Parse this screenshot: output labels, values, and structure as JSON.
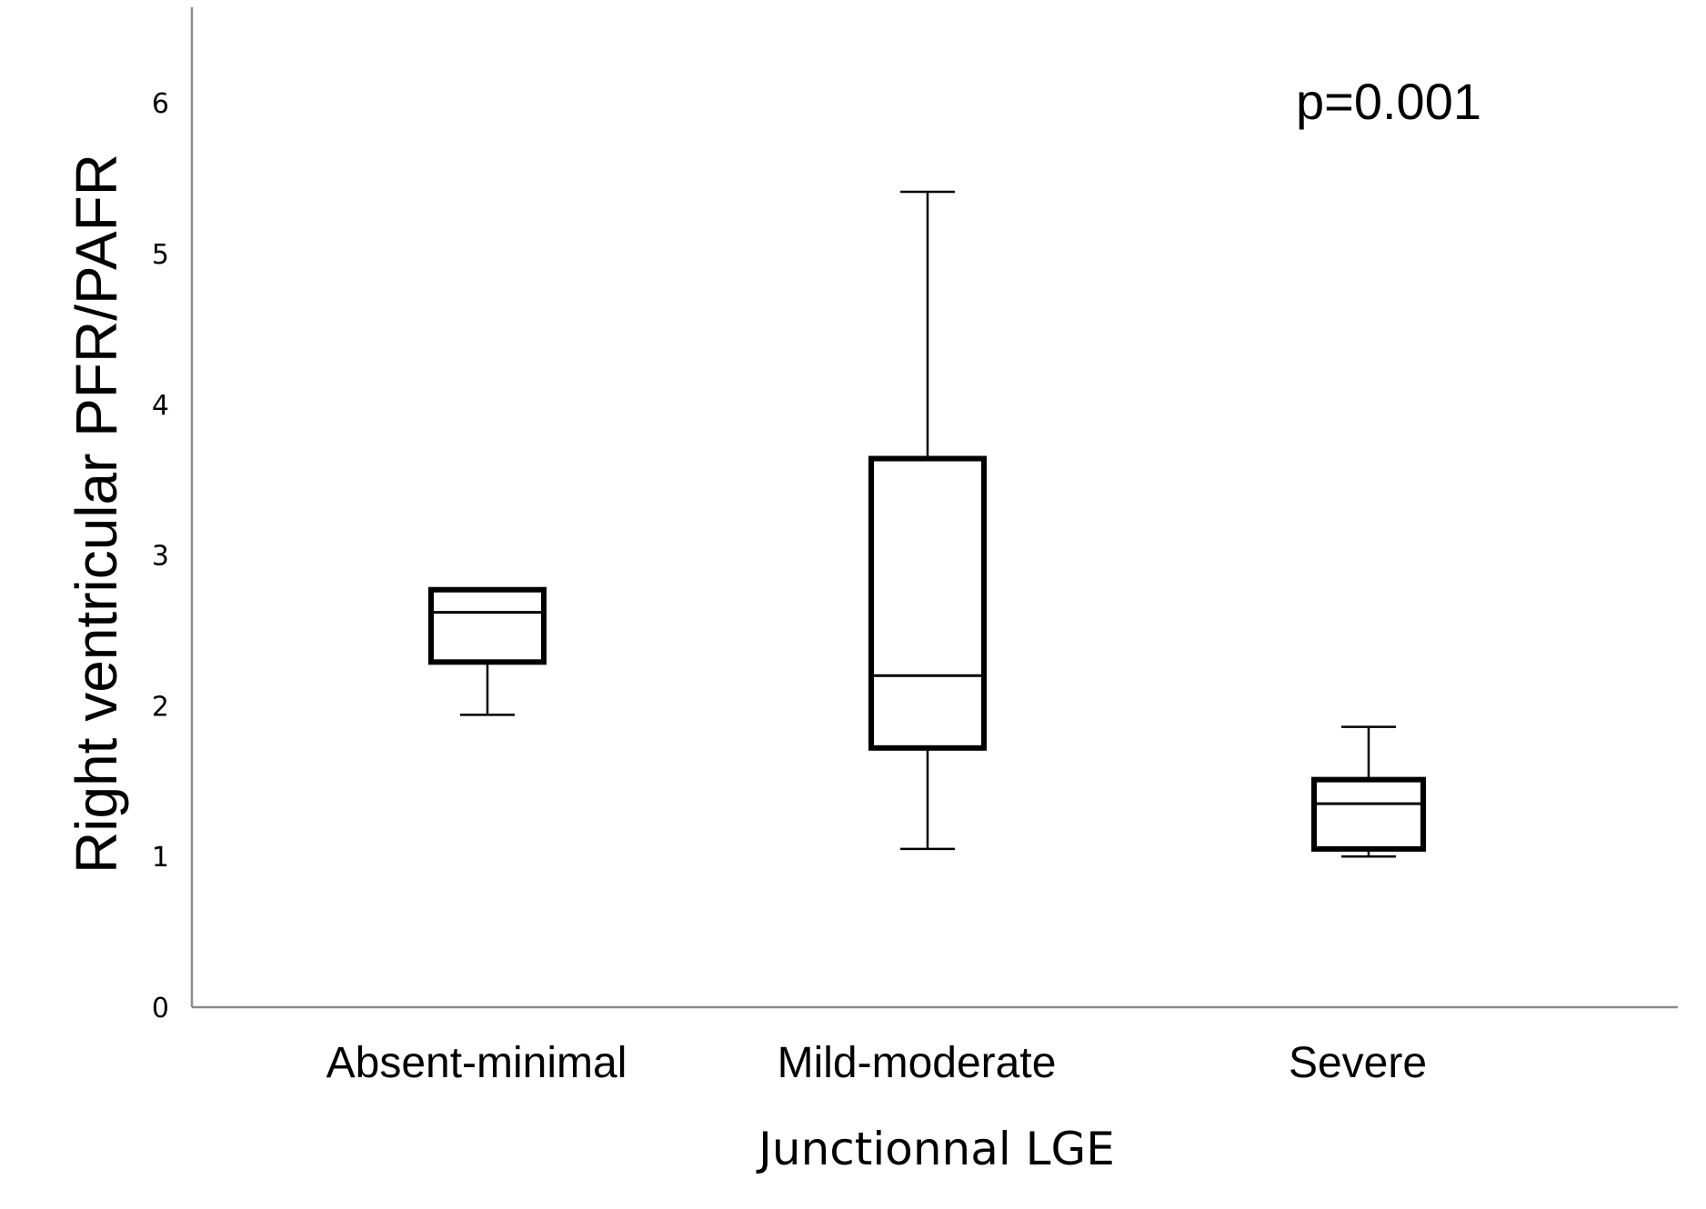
{
  "chart_data": {
    "type": "box",
    "title": "",
    "xlabel": "Junctionnal LGE",
    "ylabel": "Right ventricular PFR/PAFR",
    "ylim": [
      0,
      6.6
    ],
    "yticks": [
      0,
      1,
      2,
      3,
      4,
      5,
      6
    ],
    "grid": false,
    "annotation": "p=0.001",
    "categories": [
      "Absent-minimal",
      "Mild-moderate",
      "Severe"
    ],
    "boxes": [
      {
        "category": "Absent-minimal",
        "whisker_low": 1.94,
        "q1": 2.29,
        "median": 2.62,
        "q3": 2.77,
        "whisker_high": 2.77
      },
      {
        "category": "Mild-moderate",
        "whisker_low": 1.05,
        "q1": 1.72,
        "median": 2.2,
        "q3": 3.64,
        "whisker_high": 5.41
      },
      {
        "category": "Severe",
        "whisker_low": 1.0,
        "q1": 1.05,
        "median": 1.35,
        "q3": 1.51,
        "whisker_high": 1.86
      }
    ]
  }
}
